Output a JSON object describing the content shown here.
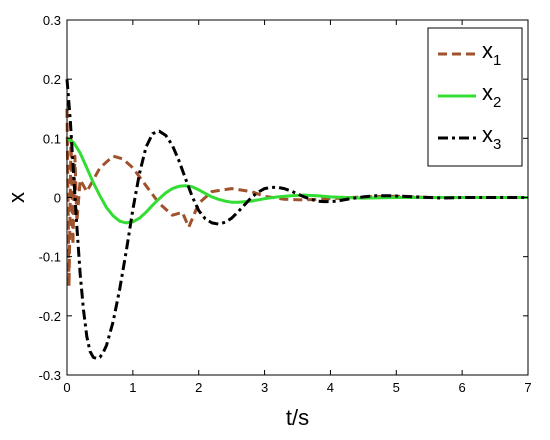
{
  "chart_data": {
    "type": "line",
    "xlabel": "t/s",
    "ylabel": "x",
    "xlim": [
      0,
      7
    ],
    "ylim": [
      -0.3,
      0.3
    ],
    "x_ticks": [
      0,
      1,
      2,
      3,
      4,
      5,
      6,
      7
    ],
    "y_ticks": [
      -0.3,
      -0.2,
      -0.1,
      0,
      0.1,
      0.2,
      0.3
    ],
    "x_tick_labels": [
      "0",
      "1",
      "2",
      "3",
      "4",
      "5",
      "6",
      "7"
    ],
    "y_tick_labels": [
      "-0.3",
      "-0.2",
      "-0.1",
      "0",
      "0.1",
      "0.2",
      "0.3"
    ],
    "legend_position": "top-right",
    "grid": false,
    "series": [
      {
        "name": "x",
        "subscript": "1",
        "color": "#a0522d",
        "style": "dashed",
        "x": [
          0,
          0.03,
          0.06,
          0.09,
          0.12,
          0.15,
          0.2,
          0.3,
          0.5,
          0.7,
          0.85,
          1.0,
          1.2,
          1.4,
          1.6,
          1.75,
          1.85,
          2.0,
          2.2,
          2.5,
          2.8,
          3.0,
          3.3,
          3.6,
          4.0,
          4.5,
          5.0,
          5.5,
          6.0,
          6.5,
          7.0
        ],
        "y": [
          0.15,
          -0.15,
          0.1,
          -0.08,
          0.07,
          -0.04,
          0.03,
          0.01,
          0.05,
          0.07,
          0.065,
          0.05,
          0.02,
          -0.01,
          -0.03,
          -0.025,
          -0.05,
          -0.01,
          0.01,
          0.015,
          0.01,
          0.002,
          -0.003,
          -0.004,
          -0.002,
          0.001,
          0.002,
          0.0,
          0.0,
          0.0,
          0.0
        ]
      },
      {
        "name": "x",
        "subscript": "2",
        "color": "#33dd33",
        "style": "solid",
        "x": [
          0,
          0.1,
          0.2,
          0.3,
          0.4,
          0.5,
          0.6,
          0.7,
          0.8,
          0.9,
          1.0,
          1.1,
          1.2,
          1.3,
          1.4,
          1.5,
          1.6,
          1.7,
          1.8,
          1.9,
          2.0,
          2.1,
          2.2,
          2.3,
          2.4,
          2.5,
          2.6,
          2.8,
          3.0,
          3.2,
          3.4,
          3.6,
          3.8,
          4.0,
          4.5,
          5.0,
          5.5,
          6.0,
          6.5,
          7.0
        ],
        "y": [
          0.1,
          0.093,
          0.075,
          0.05,
          0.025,
          0.003,
          -0.017,
          -0.031,
          -0.04,
          -0.043,
          -0.041,
          -0.035,
          -0.025,
          -0.013,
          -0.002,
          0.008,
          0.015,
          0.019,
          0.02,
          0.018,
          0.013,
          0.007,
          0.001,
          -0.003,
          -0.006,
          -0.008,
          -0.008,
          -0.006,
          -0.002,
          0.001,
          0.003,
          0.004,
          0.003,
          0.001,
          -0.001,
          0.0,
          0.0,
          0.0,
          0.0,
          0.0
        ]
      },
      {
        "name": "x",
        "subscript": "3",
        "color": "#000000",
        "style": "dashdot",
        "x": [
          0,
          0.05,
          0.1,
          0.15,
          0.2,
          0.25,
          0.3,
          0.35,
          0.4,
          0.45,
          0.5,
          0.55,
          0.6,
          0.7,
          0.8,
          0.9,
          1.0,
          1.1,
          1.2,
          1.3,
          1.4,
          1.5,
          1.6,
          1.7,
          1.8,
          1.9,
          2.0,
          2.1,
          2.2,
          2.3,
          2.4,
          2.5,
          2.6,
          2.7,
          2.8,
          2.9,
          3.0,
          3.1,
          3.2,
          3.3,
          3.4,
          3.5,
          3.6,
          3.7,
          3.8,
          3.9,
          4.0,
          4.1,
          4.2,
          4.3,
          4.5,
          4.7,
          4.9,
          5.1,
          5.3,
          5.5,
          5.7,
          6.0,
          6.5,
          7.0
        ],
        "y": [
          0.2,
          0.13,
          0.04,
          -0.05,
          -0.13,
          -0.19,
          -0.235,
          -0.26,
          -0.27,
          -0.272,
          -0.27,
          -0.262,
          -0.25,
          -0.21,
          -0.155,
          -0.09,
          -0.02,
          0.04,
          0.085,
          0.108,
          0.112,
          0.105,
          0.088,
          0.062,
          0.032,
          0.002,
          -0.022,
          -0.036,
          -0.043,
          -0.045,
          -0.042,
          -0.035,
          -0.024,
          -0.012,
          0.0,
          0.009,
          0.015,
          0.017,
          0.017,
          0.015,
          0.011,
          0.006,
          0.001,
          -0.003,
          -0.006,
          -0.007,
          -0.007,
          -0.006,
          -0.004,
          -0.002,
          0.001,
          0.003,
          0.003,
          0.002,
          0.001,
          0.0,
          -0.001,
          0.0,
          0.0,
          0.0
        ]
      }
    ]
  }
}
